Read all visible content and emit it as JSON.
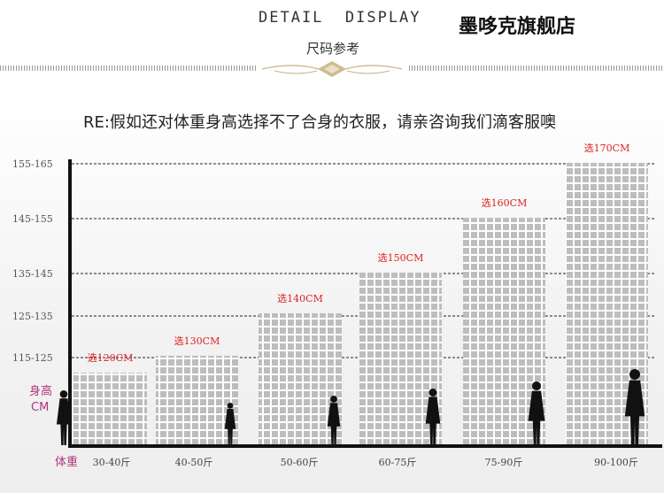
{
  "header": {
    "title_en": "DETAIL  DISPLAY",
    "title_cn": "尺码参考",
    "brand": "墨哆克旗舰店"
  },
  "chart_data": {
    "type": "bar",
    "title": "RE:假如还对体重身高选择不了合身的衣服，请亲咨询我们滴客服噢",
    "ylabel": "身高CM",
    "xlabel": "体重",
    "y_ticks": [
      "155-165",
      "145-155",
      "135-145",
      "125-135",
      "115-125"
    ],
    "categories": [
      "30-40斤",
      "40-50斤",
      "50-60斤",
      "60-75斤",
      "75-90斤",
      "90-100斤"
    ],
    "series": [
      {
        "values": [
          120,
          130,
          140,
          150,
          160,
          170
        ],
        "labels": [
          "选120CM",
          "选130CM",
          "选140CM",
          "选150CM",
          "选160CM",
          "选170CM"
        ]
      }
    ],
    "grid": true,
    "colors": {
      "bar": "#bdbdbd",
      "bar_grid": "#ffffff",
      "label": "#e02020",
      "axis": "#111111",
      "side_label": "#b0357a"
    }
  }
}
